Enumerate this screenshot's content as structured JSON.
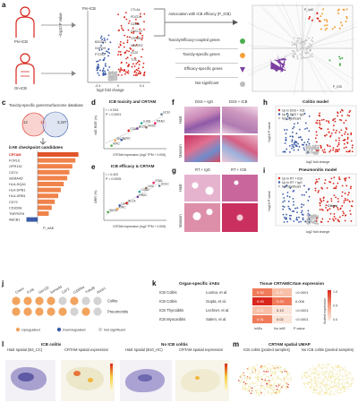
{
  "panel_letters": {
    "a": "a",
    "c": "c",
    "d": "d",
    "e": "e",
    "f": "f",
    "g": "g",
    "h": "h",
    "i": "i",
    "j": "j",
    "k": "k",
    "l": "l",
    "m": "m"
  },
  "colors": {
    "up": "#d9261c",
    "down": "#3b5ca8",
    "ns": "#bdbdbd",
    "orange": "#f4a13a",
    "green": "#4caf50",
    "he_pink": "#d58fb8",
    "he_purple": "#8e5aa7",
    "masson_red": "#c9305f",
    "masson_blue": "#6e8ccc"
  },
  "panel_a": {
    "pre_icb": "Pre-ICB",
    "on_icb": "On-ICB",
    "volcano_title": "Pre-ICB",
    "ylabel": "−log10 P value",
    "xlabel": "log2 fold change",
    "left_genes": [
      "B3GAT1",
      "GAPDH",
      "PTGS2"
    ],
    "right_genes": [
      "CTLA4",
      "PDCD1",
      "GZMB",
      "CXCL13",
      "CRTAM",
      "HAVCR2",
      "ICOS",
      "TOX"
    ],
    "assoc": "Association with ICB efficacy (P_ICB)",
    "categories": [
      "Toxicity/efficacy-coupled genes",
      "Toxicity-specific genes",
      "Efficacy-specific genes",
      "Not significant"
    ]
  },
  "panel_c": {
    "venn_left": "Toxicity-specific genes",
    "venn_right": "Surfaceome database",
    "n_left": "12",
    "n_mid": "12",
    "n_right": "3,347",
    "list_title": "irAE checkpoint candidates",
    "genes": [
      "CRTAM",
      "FCRL6",
      "GPR132",
      "CD74",
      "SEMA4D",
      "HLA-DQA1",
      "HLA-DPB1",
      "HLA-DRB1",
      "CD72",
      "CD300A",
      "TNFRSF8",
      "ABCB1"
    ],
    "bar_values": [
      9.5,
      8.8,
      8.1,
      7.4,
      6.9,
      6.1,
      5.4,
      4.8,
      4.0,
      3.3,
      2.6,
      -2.6
    ],
    "xlabel": "P_irAE"
  },
  "panel_d": {
    "title": "ICB toxicity and CRTAM",
    "stat1": "r = 0.534",
    "stat2": "P < 0.0001",
    "xlabel": "CRTAM expression (log2 TPM + 0.005)",
    "ylabel": "irAE ROR (ln)",
    "labels": [
      "KIRC",
      "SKCM",
      "LUSC",
      "COAD",
      "BLCA",
      "LUAD",
      "HNSC",
      "PRAD",
      "UCEC"
    ]
  },
  "panel_e": {
    "title": "ICB efficacy & CRTAM",
    "stat1": "r = 0.402",
    "stat2": "P = 0.0005",
    "xlabel": "CRTAM expression (log2 TPM + 0.005)",
    "ylabel": "ORR (%)",
    "labels": [
      "SKCM",
      "KIRC",
      "LUAD",
      "BLCA",
      "HNSC",
      "COAD",
      "LIHC",
      "STAD",
      "UCEC"
    ]
  },
  "panel_f": {
    "col1": "DSS + IgG",
    "col2": "DSS + ICB",
    "row1": "H&E",
    "row2": "Masson"
  },
  "panel_g": {
    "col1": "RT + IgG",
    "col2": "RT + ICB",
    "row1": "H&E",
    "row2": "Masson"
  },
  "panel_h": {
    "title": "Colitis model",
    "legend": [
      "Up in DSS + ICB",
      "Up in DSS + IgG",
      "Not significant"
    ],
    "xlabel": "log2 fold change",
    "ylabel": "−log10 P value"
  },
  "panel_i": {
    "title": "Pneumonitis model",
    "legend": [
      "Up in RT + ICB",
      "Up in RT + IgG",
      "Not significant"
    ],
    "xlabel": "log2 fold change",
    "ylabel": "−log10 P value",
    "highlight": "Crtam"
  },
  "panel_j": {
    "genes": [
      "Crtam",
      "Fcrl6",
      "Gpr132",
      "Sema4d",
      "Cd72",
      "Cd300a",
      "Tnfrsf8",
      "Abcb1"
    ],
    "rows": [
      "Colitis",
      "Pneumonitis"
    ],
    "status": [
      [
        "up",
        "up",
        "up",
        "up",
        "ns",
        "up",
        "ns",
        "ns"
      ],
      [
        "up",
        "up",
        "up",
        "up",
        "up",
        "ns",
        "up",
        "ns"
      ]
    ],
    "legend": [
      "Upregulated",
      "Downregulated",
      "Not significant"
    ]
  },
  "panel_k": {
    "h1": "Organ-specific irAEs",
    "h2": "Tissue CRTAM/Crtam expression",
    "rows": [
      {
        "name": "ICB Colitis",
        "ref": "Luoma, et al.",
        "a": "0.33",
        "b": "0.17",
        "p": "<0.0001"
      },
      {
        "name": "ICB Colitis",
        "ref": "Gupta, et al.",
        "a": "0.93",
        "b": "0.29",
        "p": "0.006"
      },
      {
        "name": "ICB Thyroiditis",
        "ref": "Lechner, et al.",
        "a": "0.21",
        "b": "0.13",
        "p": "<0.0001"
      },
      {
        "name": "ICB Myocarditis",
        "ref": "Salem, et al.",
        "a": "0.31",
        "b": "0.02",
        "p": "<0.0001"
      }
    ],
    "cols": [
      "irAEs",
      "No irAE",
      "P value"
    ],
    "scale_label": "Scaled expression",
    "scale_ticks": [
      "1.0",
      "0.5",
      "0.0"
    ]
  },
  "panel_l": {
    "title1": "ICB colitis",
    "title2": "No ICB colitis",
    "s1": "H&E spatial (B3_CC)",
    "s2": "CRTAM spatial expression",
    "s3": "H&E spatial (B10_HC)",
    "s4": "CRTAM spatial expression"
  },
  "panel_m": {
    "title": "CRTAM spatial UMAP",
    "s1": "ICB colitis (pooled samples)",
    "s2": "No ICB colitis (pooled samples)"
  }
}
